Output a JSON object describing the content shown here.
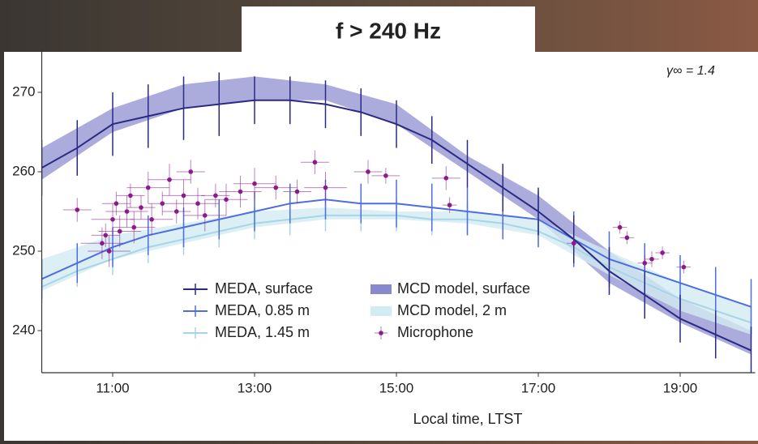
{
  "chart_data": {
    "type": "line",
    "title": "f > 240 Hz",
    "x_label": "Local time, LTST",
    "annotation": "γ∞ = 1.4",
    "xlim": [
      10,
      20
    ],
    "ylim": [
      234.7,
      275.3
    ],
    "xticks": [
      {
        "value": 11,
        "label": "11:00"
      },
      {
        "value": 13,
        "label": "13:00"
      },
      {
        "value": 15,
        "label": "15:00"
      },
      {
        "value": 17,
        "label": "17:00"
      },
      {
        "value": 19,
        "label": "19:00"
      }
    ],
    "yticks": [
      240,
      250,
      260,
      270
    ],
    "bands": [
      {
        "name": "MCD model, surface",
        "color": "#8889cc",
        "x": [
          10,
          11,
          12,
          13,
          14,
          15,
          16,
          17,
          18,
          19,
          20
        ],
        "lower": [
          259,
          265,
          268,
          269,
          269,
          266,
          260,
          254,
          246,
          241,
          237
        ],
        "upper": [
          263,
          268,
          271,
          272,
          271,
          268.5,
          262,
          257,
          250,
          244,
          240
        ]
      },
      {
        "name": "MCD model, 2 m",
        "color": "#d3ebf3",
        "x": [
          10,
          11,
          12,
          13,
          14,
          15,
          16,
          17,
          18,
          19,
          20
        ],
        "lower": [
          245,
          249,
          251,
          253,
          254,
          254,
          253.5,
          252,
          247,
          242.5,
          239.5
        ],
        "upper": [
          249,
          252,
          253.5,
          255,
          255.5,
          255,
          255,
          254,
          250,
          246,
          243
        ]
      }
    ],
    "series": [
      {
        "name": "MEDA, surface",
        "color": "#2a2a85",
        "x": [
          10,
          10.5,
          11,
          11.5,
          12,
          12.5,
          13,
          13.5,
          14,
          14.5,
          15,
          15.5,
          16,
          16.5,
          17,
          17.5,
          18,
          18.5,
          19,
          19.5,
          20
        ],
        "values": [
          260.5,
          263,
          266,
          267,
          268,
          268.5,
          269,
          269,
          268.5,
          267.5,
          266,
          264,
          261,
          258,
          255,
          251.5,
          247.5,
          244.5,
          241.5,
          239.5,
          237.5
        ],
        "errors": [
          3.5,
          3.5,
          4,
          4,
          4,
          4,
          3,
          3,
          3,
          3,
          3,
          3,
          3,
          3,
          3,
          3,
          3,
          3,
          3,
          3,
          3
        ]
      },
      {
        "name": "MEDA, 0.85 m",
        "color": "#4c6ee0",
        "x": [
          10,
          10.5,
          11,
          11.5,
          12,
          12.5,
          13,
          13.5,
          14,
          14.5,
          15,
          15.5,
          16,
          16.5,
          17,
          17.5,
          18,
          18.5,
          19,
          19.5,
          20
        ],
        "values": [
          246.5,
          248.5,
          250.5,
          252,
          253,
          254,
          255,
          256,
          256.5,
          256,
          256,
          255.5,
          255,
          254.5,
          254,
          251.5,
          249,
          247.5,
          246,
          244.5,
          243
        ],
        "errors": [
          2.5,
          2.5,
          2.5,
          2.5,
          2.5,
          2.5,
          2.5,
          2.5,
          2.5,
          2.5,
          3,
          3,
          3,
          3,
          3.5,
          3.5,
          3.5,
          3.5,
          3.5,
          3.5,
          3.5
        ]
      },
      {
        "name": "MEDA, 1.45 m",
        "color": "#a6d6e6",
        "x": [
          10,
          10.5,
          11,
          11.5,
          12,
          12.5,
          13,
          13.5,
          14,
          14.5,
          15,
          15.5,
          16,
          16.5,
          17,
          17.5,
          18,
          18.5,
          19,
          19.5,
          20
        ],
        "values": [
          245.5,
          247.5,
          249,
          250.5,
          251.5,
          252.5,
          253.5,
          254,
          254.5,
          254.5,
          254.5,
          254,
          254,
          253.5,
          252.5,
          250.5,
          248,
          246,
          244,
          242.5,
          241
        ],
        "errors": [
          2,
          2,
          2,
          2,
          2,
          2,
          2,
          2,
          2,
          2,
          2,
          2,
          2,
          2,
          2,
          2,
          2,
          2,
          2,
          2,
          2
        ]
      }
    ],
    "microphone": {
      "name": "Microphone",
      "color": "#8b1a8b",
      "x": [
        10.5,
        10.85,
        10.9,
        10.95,
        11.0,
        11.05,
        11.1,
        11.2,
        11.25,
        11.3,
        11.4,
        11.5,
        11.55,
        11.7,
        11.8,
        11.9,
        12.0,
        12.1,
        12.2,
        12.3,
        12.45,
        12.6,
        12.8,
        13.0,
        13.3,
        13.6,
        13.85,
        14.0,
        14.6,
        14.85,
        15.7,
        15.75,
        17.5,
        18.15,
        18.25,
        18.5,
        18.6,
        18.75,
        19.05
      ],
      "values": [
        255.2,
        251,
        252,
        250,
        254,
        256,
        252.5,
        255,
        257,
        253,
        255.5,
        258,
        254,
        256,
        259,
        255,
        257,
        260,
        256,
        254.5,
        257,
        256.5,
        257.5,
        258.5,
        258,
        257.5,
        261.2,
        258,
        260,
        259.5,
        259.2,
        255.8,
        251,
        253,
        251.7,
        248.5,
        249,
        249.8,
        248
      ],
      "xerr": [
        0.2,
        0.3,
        0.2,
        0.3,
        0.3,
        0.2,
        0.3,
        0.3,
        0.2,
        0.3,
        0.2,
        0.3,
        0.3,
        0.2,
        0.3,
        0.2,
        0.3,
        0.2,
        0.3,
        0.3,
        0.2,
        0.3,
        0.3,
        0.3,
        0.3,
        0.2,
        0.2,
        0.3,
        0.2,
        0.2,
        0.2,
        0.1,
        0.1,
        0.1,
        0.1,
        0.1,
        0.1,
        0.1,
        0.1
      ],
      "yerr": [
        1.5,
        2,
        1.5,
        2,
        2,
        1.5,
        2,
        2,
        1.5,
        2,
        1.5,
        2,
        2,
        1.5,
        2,
        1.5,
        2,
        1.5,
        2,
        2,
        1.5,
        2,
        2,
        2,
        1.5,
        1.5,
        1.5,
        2,
        1.5,
        1,
        1.5,
        1,
        0.8,
        0.8,
        0.8,
        1,
        1,
        0.8,
        0.8
      ]
    }
  }
}
